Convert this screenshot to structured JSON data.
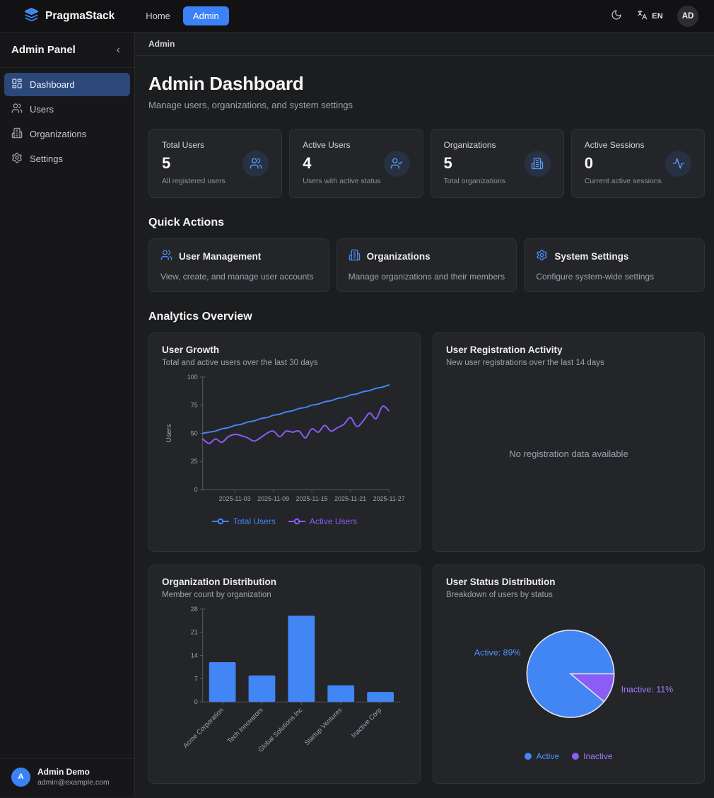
{
  "colors": {
    "accent": "#3b82f6",
    "chart_blue": "#4285f4",
    "chart_purple": "#8b5cf6",
    "active_nav_bg": "#2b4878"
  },
  "navbar": {
    "brand": "PragmaStack",
    "links": [
      {
        "label": "Home",
        "active": false
      },
      {
        "label": "Admin",
        "active": true
      }
    ],
    "theme_icon": "moon-icon",
    "language_icon": "translate-icon",
    "language": "EN",
    "avatar_initials": "AD"
  },
  "sidebar": {
    "title": "Admin Panel",
    "collapse_icon": "‹",
    "items": [
      {
        "label": "Dashboard",
        "icon": "dashboard-icon",
        "active": true
      },
      {
        "label": "Users",
        "icon": "users-icon",
        "active": false
      },
      {
        "label": "Organizations",
        "icon": "organizations-icon",
        "active": false
      },
      {
        "label": "Settings",
        "icon": "settings-icon",
        "active": false
      }
    ],
    "user": {
      "initials": "A",
      "name": "Admin Demo",
      "email": "admin@example.com"
    }
  },
  "breadcrumb": {
    "label": "Admin"
  },
  "page": {
    "title": "Admin Dashboard",
    "subtitle": "Manage users, organizations, and system settings"
  },
  "stats": [
    {
      "label": "Total Users",
      "value": "5",
      "caption": "All registered users",
      "icon": "users-icon"
    },
    {
      "label": "Active Users",
      "value": "4",
      "caption": "Users with active status",
      "icon": "user-check-icon"
    },
    {
      "label": "Organizations",
      "value": "5",
      "caption": "Total organizations",
      "icon": "building-icon"
    },
    {
      "label": "Active Sessions",
      "value": "0",
      "caption": "Current active sessions",
      "icon": "activity-icon"
    }
  ],
  "quick_actions": {
    "heading": "Quick Actions",
    "cards": [
      {
        "title": "User Management",
        "description": "View, create, and manage user accounts",
        "icon": "users-icon"
      },
      {
        "title": "Organizations",
        "description": "Manage organizations and their members",
        "icon": "building-icon"
      },
      {
        "title": "System Settings",
        "description": "Configure system-wide settings",
        "icon": "gear-icon"
      }
    ]
  },
  "analytics_heading": "Analytics Overview",
  "chart_data": [
    {
      "type": "line",
      "title": "User Growth",
      "subtitle": "Total and active users over the last 30 days",
      "xlabel": "",
      "ylabel": "Users",
      "ylim": [
        0,
        100
      ],
      "yticks": [
        0,
        25,
        50,
        75,
        100
      ],
      "xticks": [
        "2025-11-03",
        "2025-11-09",
        "2025-11-15",
        "2025-11-21",
        "2025-11-27"
      ],
      "xtick_indices": [
        5,
        11,
        17,
        23,
        29
      ],
      "grid": false,
      "legend_position": "bottom",
      "series": [
        {
          "name": "Total Users",
          "color": "#4285f4",
          "values": [
            50,
            51,
            52,
            54,
            55,
            57,
            58,
            60,
            61,
            63,
            64,
            66,
            67,
            69,
            70,
            72,
            73,
            75,
            76,
            78,
            79,
            81,
            82,
            84,
            85,
            87,
            88,
            90,
            91,
            93
          ]
        },
        {
          "name": "Active Users",
          "color": "#8b5cf6",
          "values": [
            45,
            41,
            45,
            42,
            47,
            49,
            48,
            46,
            43,
            46,
            50,
            52,
            47,
            52,
            51,
            52,
            46,
            54,
            51,
            57,
            52,
            55,
            58,
            64,
            56,
            61,
            68,
            63,
            74,
            70
          ]
        }
      ]
    },
    {
      "type": "line",
      "title": "User Registration Activity",
      "subtitle": "New user registrations over the last 14 days",
      "series": [],
      "empty_message": "No registration data available"
    },
    {
      "type": "bar",
      "title": "Organization Distribution",
      "subtitle": "Member count by organization",
      "categories": [
        "Acme Corporation",
        "Tech Innovators",
        "Global Solutions Inc",
        "Startup Ventures",
        "Inactive Corp"
      ],
      "values": [
        12,
        8,
        26,
        5,
        3
      ],
      "ylim": [
        0,
        28
      ],
      "yticks": [
        0,
        7,
        14,
        21,
        28
      ],
      "bar_color": "#4285f4",
      "grid": false
    },
    {
      "type": "pie",
      "title": "User Status Distribution",
      "subtitle": "Breakdown of users by status",
      "slices": [
        {
          "label": "Active",
          "pct": 89,
          "color": "#4285f4",
          "text_color": "#4d94ff",
          "callout": "Active: 89%"
        },
        {
          "label": "Inactive",
          "pct": 11,
          "color": "#8b5cf6",
          "text_color": "#9d7bf7",
          "callout": "Inactive: 11%"
        }
      ],
      "legend_position": "bottom"
    }
  ]
}
